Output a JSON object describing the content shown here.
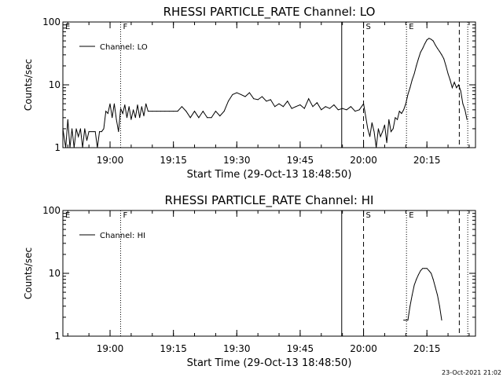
{
  "footer_stamp": "23-Oct-2021 21:02",
  "chart_data": [
    {
      "type": "line",
      "title": "RHESSI PARTICLE_RATE Channel: LO",
      "xlabel": "Start Time (29-Oct-13 18:48:50)",
      "ylabel": "Counts/sec",
      "legend": "Channel: LO",
      "legend_placement": "top-left",
      "y_scale": "log",
      "ylim": [
        1,
        100
      ],
      "y_ticks": [
        "1",
        "10",
        "100"
      ],
      "x_ticks": [
        "19:00",
        "19:15",
        "19:30",
        "19:45",
        "20:00",
        "20:15"
      ],
      "xlim": [
        "18:48:50",
        "20:26:30"
      ],
      "markers": [
        {
          "time": "18:48:50",
          "label": "E",
          "style": "none"
        },
        {
          "time": "19:02:30",
          "label": "F",
          "style": "dotted"
        },
        {
          "time": "19:54:50",
          "label": "",
          "style": "solid"
        },
        {
          "time": "20:00:00",
          "label": "S",
          "style": "dashed"
        },
        {
          "time": "20:10:10",
          "label": "E",
          "style": "dotted"
        },
        {
          "time": "20:22:40",
          "label": "",
          "style": "dashed"
        },
        {
          "time": "20:24:40",
          "label": "",
          "style": "dotted"
        }
      ],
      "series": [
        {
          "name": "Channel: LO",
          "x": [
            "18:48:50",
            "18:49:30",
            "18:50:00",
            "18:50:30",
            "18:51:00",
            "18:51:30",
            "18:52:00",
            "18:52:30",
            "18:53:00",
            "18:53:30",
            "18:54:00",
            "18:54:30",
            "18:55:00",
            "18:55:30",
            "18:56:00",
            "18:56:30",
            "18:57:00",
            "18:57:30",
            "18:58:00",
            "18:58:30",
            "18:59:00",
            "18:59:30",
            "19:00:00",
            "19:00:30",
            "19:01:00",
            "19:01:30",
            "19:02:00",
            "19:02:30",
            "19:03:00",
            "19:03:30",
            "19:04:00",
            "19:04:30",
            "19:05:00",
            "19:05:30",
            "19:06:00",
            "19:06:30",
            "19:07:00",
            "19:07:30",
            "19:08:00",
            "19:08:30",
            "19:09:00",
            "19:10:00",
            "19:11:00",
            "19:12:00",
            "19:13:00",
            "19:14:00",
            "19:15:00",
            "19:16:00",
            "19:17:00",
            "19:18:00",
            "19:19:00",
            "19:20:00",
            "19:21:00",
            "19:22:00",
            "19:23:00",
            "19:24:00",
            "19:25:00",
            "19:26:00",
            "19:27:00",
            "19:28:00",
            "19:29:00",
            "19:30:00",
            "19:31:00",
            "19:32:00",
            "19:33:00",
            "19:34:00",
            "19:35:00",
            "19:36:00",
            "19:37:00",
            "19:38:00",
            "19:39:00",
            "19:40:00",
            "19:41:00",
            "19:42:00",
            "19:43:00",
            "19:44:00",
            "19:45:00",
            "19:46:00",
            "19:47:00",
            "19:48:00",
            "19:49:00",
            "19:50:00",
            "19:51:00",
            "19:52:00",
            "19:53:00",
            "19:54:00",
            "19:55:00",
            "19:56:00",
            "19:57:00",
            "19:58:00",
            "19:59:00",
            "20:00:00",
            "20:01:00",
            "20:01:30",
            "20:02:00",
            "20:02:30",
            "20:03:00",
            "20:03:30",
            "20:04:00",
            "20:04:30",
            "20:05:00",
            "20:05:30",
            "20:06:00",
            "20:06:30",
            "20:07:00",
            "20:07:30",
            "20:08:00",
            "20:08:30",
            "20:09:00",
            "20:09:30",
            "20:10:00",
            "20:10:30",
            "20:11:00",
            "20:11:30",
            "20:12:00",
            "20:12:30",
            "20:13:00",
            "20:13:30",
            "20:14:00",
            "20:14:30",
            "20:15:00",
            "20:15:30",
            "20:16:00",
            "20:16:30",
            "20:17:00",
            "20:17:30",
            "20:18:00",
            "20:18:30",
            "20:19:00",
            "20:19:30",
            "20:20:00",
            "20:20:30",
            "20:21:00",
            "20:21:30",
            "20:22:00",
            "20:22:30",
            "20:23:00",
            "20:23:30",
            "20:24:00",
            "20:24:30"
          ],
          "y": [
            2.0,
            1.0,
            2.8,
            1.0,
            2.0,
            1.0,
            2.0,
            1.5,
            2.0,
            1.0,
            2.0,
            1.3,
            1.8,
            1.8,
            1.8,
            1.8,
            1.0,
            1.8,
            1.8,
            2.0,
            3.8,
            3.5,
            5.0,
            3.0,
            5.0,
            2.8,
            1.8,
            4.2,
            3.5,
            4.8,
            3.0,
            4.5,
            2.8,
            4.0,
            3.0,
            4.8,
            3.0,
            4.5,
            3.2,
            5.0,
            3.8,
            3.8,
            3.8,
            3.8,
            3.8,
            3.8,
            3.8,
            3.8,
            4.5,
            3.8,
            3.0,
            3.8,
            3.0,
            3.8,
            3.0,
            3.0,
            3.8,
            3.2,
            3.8,
            5.5,
            7.0,
            7.5,
            7.0,
            6.5,
            7.5,
            6.0,
            5.8,
            6.5,
            5.5,
            5.8,
            4.5,
            5.0,
            4.5,
            5.5,
            4.2,
            4.5,
            4.8,
            4.2,
            6.0,
            4.5,
            5.2,
            4.0,
            4.5,
            4.2,
            4.8,
            4.0,
            4.2,
            4.0,
            4.5,
            3.8,
            4.0,
            5.0,
            2.0,
            1.5,
            2.5,
            1.8,
            1.0,
            2.0,
            1.5,
            1.8,
            2.3,
            1.2,
            2.8,
            1.8,
            2.0,
            3.0,
            2.8,
            3.8,
            3.5,
            4.0,
            5.0,
            7.0,
            9.0,
            12.0,
            15.0,
            20.0,
            26.0,
            33.0,
            38.0,
            45.0,
            52.0,
            55.0,
            53.0,
            50.0,
            43.0,
            38.0,
            34.0,
            30.0,
            26.0,
            20.0,
            15.0,
            12.0,
            9.0,
            11.0,
            9.0,
            10.0,
            8.0,
            5.0,
            4.0,
            2.8
          ]
        }
      ]
    },
    {
      "type": "line",
      "title": "RHESSI PARTICLE_RATE Channel: HI",
      "xlabel": "Start Time (29-Oct-13 18:48:50)",
      "ylabel": "Counts/sec",
      "legend": "Channel: HI",
      "legend_placement": "top-left",
      "y_scale": "log",
      "ylim": [
        1,
        100
      ],
      "y_ticks": [
        "1",
        "10",
        "100"
      ],
      "x_ticks": [
        "19:00",
        "19:15",
        "19:30",
        "19:45",
        "20:00",
        "20:15"
      ],
      "xlim": [
        "18:48:50",
        "20:26:30"
      ],
      "markers": [
        {
          "time": "18:48:50",
          "label": "E",
          "style": "none"
        },
        {
          "time": "19:02:30",
          "label": "F",
          "style": "dotted"
        },
        {
          "time": "19:54:50",
          "label": "",
          "style": "solid"
        },
        {
          "time": "20:00:00",
          "label": "S",
          "style": "dashed"
        },
        {
          "time": "20:10:10",
          "label": "E",
          "style": "dotted"
        },
        {
          "time": "20:22:40",
          "label": "",
          "style": "dashed"
        },
        {
          "time": "20:24:40",
          "label": "",
          "style": "dotted"
        }
      ],
      "series": [
        {
          "name": "Channel: HI",
          "x": [
            "20:09:30",
            "20:10:30",
            "20:11:00",
            "20:11:30",
            "20:12:00",
            "20:12:30",
            "20:13:00",
            "20:13:30",
            "20:14:00",
            "20:14:30",
            "20:15:00",
            "20:15:30",
            "20:16:00",
            "20:16:30",
            "20:17:00",
            "20:17:30",
            "20:18:00",
            "20:18:30"
          ],
          "y": [
            1.8,
            1.8,
            3.0,
            4.5,
            6.5,
            8.0,
            9.5,
            11.0,
            12.0,
            12.0,
            12.0,
            11.0,
            10.0,
            8.0,
            6.0,
            4.5,
            3.0,
            1.8
          ]
        }
      ]
    }
  ]
}
